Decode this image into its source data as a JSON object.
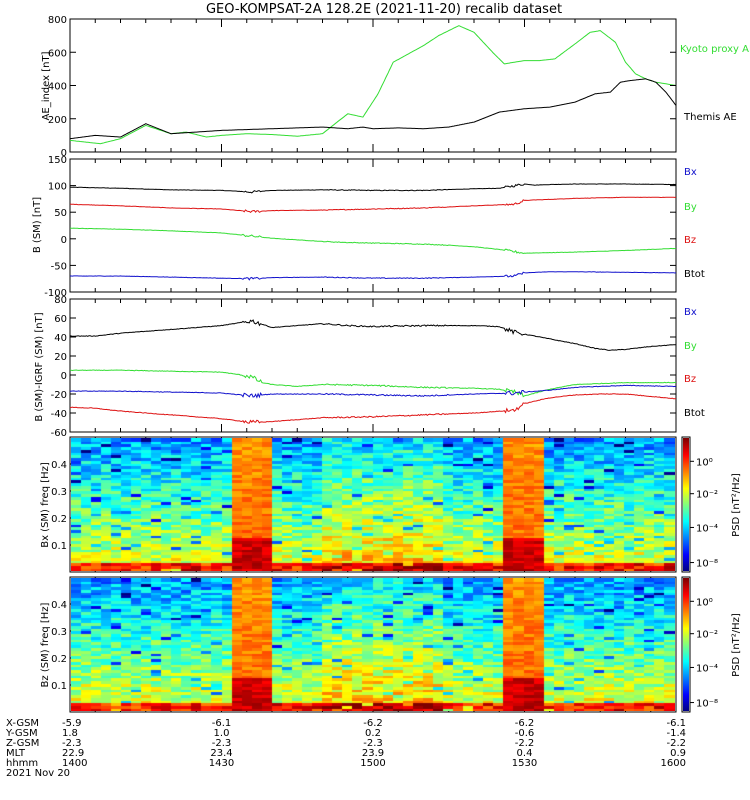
{
  "title": "GEO-KOMPSAT-2A 128.2E (2021-11-20) recalib dataset",
  "x_ticks": [
    "1400",
    "1430",
    "1500",
    "1530",
    "1600"
  ],
  "ephemeris": {
    "labels": [
      "X-GSM",
      "Y-GSM",
      "Z-GSM",
      "MLT",
      "hhmm",
      "2021 Nov 20"
    ],
    "rows": [
      [
        "-5.9",
        "-6.1",
        "-6.2",
        "-6.2",
        "-6.1"
      ],
      [
        "1.8",
        "1.0",
        "0.2",
        "-0.6",
        "-1.4"
      ],
      [
        "-2.3",
        "-2.3",
        "-2.3",
        "-2.2",
        "-2.2"
      ],
      [
        "22.9",
        "23.4",
        "23.9",
        "0.4",
        "0.9"
      ],
      [
        "1400",
        "1430",
        "1500",
        "1530",
        "1600"
      ]
    ]
  },
  "colors": {
    "black": "#000000",
    "green": "#33dd33",
    "red": "#dd1111",
    "blue": "#1111cc"
  },
  "chart_data": [
    {
      "type": "line",
      "ylabel": "AE_index [nT]",
      "ylim": [
        0,
        800
      ],
      "yticks": [
        "0",
        "200",
        "400",
        "600",
        "800"
      ],
      "xlim": [
        0,
        120
      ],
      "x_unit": "minutes after 14:00 UT",
      "legend": [
        {
          "text": "Kyoto proxy AE",
          "color": "#33dd33"
        },
        {
          "text": "Themis AE",
          "color": "#000000"
        }
      ],
      "series": [
        {
          "name": "Kyoto proxy AE",
          "color": "#33dd33",
          "x": [
            0,
            3,
            6,
            10,
            15,
            20,
            23,
            27,
            30,
            35,
            40,
            45,
            50,
            55,
            58,
            61,
            64,
            67,
            70,
            73,
            77,
            80,
            84,
            86,
            88,
            90,
            93,
            96,
            100,
            103,
            105,
            108,
            110,
            112,
            114,
            116,
            118,
            120
          ],
          "y": [
            70,
            60,
            50,
            80,
            160,
            110,
            120,
            90,
            100,
            110,
            105,
            95,
            110,
            230,
            210,
            350,
            540,
            590,
            640,
            700,
            760,
            720,
            590,
            530,
            540,
            550,
            550,
            560,
            650,
            720,
            730,
            660,
            540,
            470,
            440,
            420,
            410,
            400
          ]
        },
        {
          "name": "Themis AE",
          "color": "#000000",
          "x": [
            0,
            5,
            10,
            15,
            20,
            25,
            30,
            40,
            50,
            55,
            58,
            60,
            65,
            70,
            75,
            80,
            85,
            90,
            95,
            100,
            104,
            107,
            109,
            111,
            114,
            116,
            118,
            120
          ],
          "y": [
            80,
            100,
            90,
            170,
            110,
            120,
            130,
            140,
            150,
            140,
            150,
            140,
            145,
            140,
            150,
            180,
            240,
            260,
            270,
            300,
            350,
            360,
            420,
            430,
            440,
            420,
            360,
            280
          ]
        }
      ]
    },
    {
      "type": "line",
      "ylabel": "B (SM) [nT]",
      "ylim": [
        -100,
        150
      ],
      "yticks": [
        "-100",
        "-50",
        "0",
        "50",
        "100",
        "150"
      ],
      "xlim": [
        0,
        120
      ],
      "legend": [
        {
          "text": "Bx",
          "color": "#1111cc"
        },
        {
          "text": "By",
          "color": "#33dd33"
        },
        {
          "text": "Bz",
          "color": "#dd1111"
        },
        {
          "text": "Btot",
          "color": "#000000"
        }
      ],
      "series": [
        {
          "name": "Btot",
          "color": "#000000",
          "x": [
            0,
            10,
            20,
            30,
            36,
            40,
            50,
            60,
            70,
            80,
            85,
            90,
            92,
            95,
            100,
            110,
            120
          ],
          "y": [
            97,
            95,
            92,
            91,
            88,
            91,
            92,
            91,
            91,
            94,
            95,
            103,
            101,
            102,
            103,
            103,
            102
          ]
        },
        {
          "name": "By",
          "color": "#dd1111",
          "x": [
            0,
            10,
            20,
            30,
            36,
            40,
            50,
            60,
            70,
            80,
            88,
            90,
            92,
            95,
            100,
            110,
            120
          ],
          "y": [
            65,
            62,
            58,
            56,
            51,
            53,
            54,
            56,
            58,
            62,
            65,
            72,
            73,
            74,
            76,
            78,
            78
          ]
        },
        {
          "name": "Bx",
          "color": "#33dd33",
          "x": [
            0,
            10,
            20,
            30,
            36,
            40,
            45,
            50,
            55,
            60,
            65,
            70,
            75,
            80,
            85,
            90,
            95,
            100,
            110,
            120
          ],
          "y": [
            20,
            18,
            15,
            11,
            5,
            1,
            -2,
            -5,
            -7,
            -8,
            -9,
            -10,
            -12,
            -15,
            -20,
            -27,
            -26,
            -25,
            -22,
            -18
          ]
        },
        {
          "name": "Bz",
          "color": "#1111cc",
          "x": [
            0,
            10,
            20,
            30,
            36,
            40,
            50,
            60,
            70,
            80,
            88,
            90,
            95,
            100,
            110,
            120
          ],
          "y": [
            -70,
            -70,
            -72,
            -74,
            -75,
            -73,
            -72,
            -74,
            -74,
            -72,
            -70,
            -64,
            -62,
            -62,
            -63,
            -64
          ]
        }
      ]
    },
    {
      "type": "line",
      "ylabel": "B (SM)-IGRF (SM) [nT]",
      "ylim": [
        -60,
        80
      ],
      "yticks": [
        "-60",
        "-40",
        "-20",
        "0",
        "20",
        "40",
        "60",
        "80"
      ],
      "xlim": [
        0,
        120
      ],
      "legend": [
        {
          "text": "Bx",
          "color": "#1111cc"
        },
        {
          "text": "By",
          "color": "#33dd33"
        },
        {
          "text": "Bz",
          "color": "#dd1111"
        },
        {
          "text": "Btot",
          "color": "#000000"
        }
      ],
      "series": [
        {
          "name": "Btot",
          "color": "#000000",
          "x": [
            0,
            5,
            10,
            20,
            30,
            36,
            40,
            45,
            50,
            55,
            60,
            70,
            80,
            85,
            88,
            90,
            95,
            100,
            104,
            107,
            110,
            115,
            120
          ],
          "y": [
            41,
            41,
            44,
            48,
            52,
            57,
            50,
            52,
            54,
            52,
            51,
            52,
            52,
            51,
            45,
            43,
            38,
            33,
            28,
            26,
            27,
            30,
            32
          ]
        },
        {
          "name": "Bx",
          "color": "#33dd33",
          "x": [
            0,
            10,
            20,
            30,
            34,
            36,
            38,
            40,
            45,
            50,
            60,
            70,
            80,
            85,
            88,
            90,
            95,
            100,
            110,
            120
          ],
          "y": [
            5,
            5,
            4,
            3,
            0,
            -2,
            -8,
            -10,
            -12,
            -10,
            -11,
            -13,
            -14,
            -15,
            -18,
            -22,
            -15,
            -10,
            -8,
            -8
          ]
        },
        {
          "name": "Bz",
          "color": "#1111cc",
          "x": [
            0,
            10,
            20,
            30,
            36,
            40,
            50,
            60,
            70,
            80,
            88,
            90,
            95,
            100,
            110,
            120
          ],
          "y": [
            -17,
            -17,
            -18,
            -19,
            -22,
            -20,
            -20,
            -21,
            -22,
            -20,
            -19,
            -18,
            -16,
            -13,
            -11,
            -12
          ]
        },
        {
          "name": "By",
          "color": "#dd1111",
          "x": [
            0,
            5,
            10,
            20,
            30,
            36,
            40,
            50,
            60,
            70,
            80,
            88,
            90,
            95,
            100,
            105,
            110,
            120
          ],
          "y": [
            -34,
            -35,
            -38,
            -42,
            -46,
            -50,
            -49,
            -45,
            -44,
            -42,
            -40,
            -37,
            -30,
            -24,
            -21,
            -20,
            -20,
            -25
          ]
        }
      ]
    },
    {
      "type": "heatmap",
      "ylabel": "Bx (SM) freq [Hz]",
      "ylim": [
        0,
        0.5
      ],
      "yticks": [
        "0.1",
        "0.2",
        "0.3",
        "0.4"
      ],
      "xlim": [
        0,
        120
      ],
      "colorbar_label": "PSD [nT²/Hz]",
      "colorbar_ticks": [
        "10⁻⁸",
        "10⁻⁴",
        "10⁻²",
        "10⁰"
      ],
      "enhanced_intervals_min": [
        [
          34,
          39
        ],
        [
          87,
          92
        ]
      ]
    },
    {
      "type": "heatmap",
      "ylabel": "Bz (SM) freq [Hz]",
      "ylim": [
        0,
        0.5
      ],
      "yticks": [
        "0.1",
        "0.2",
        "0.3",
        "0.4"
      ],
      "xlim": [
        0,
        120
      ],
      "colorbar_label": "PSD [nT²/Hz]",
      "colorbar_ticks": [
        "10⁻⁸",
        "10⁻⁴",
        "10⁻²",
        "10⁰"
      ],
      "enhanced_intervals_min": [
        [
          34,
          39
        ],
        [
          87,
          92
        ]
      ]
    }
  ]
}
